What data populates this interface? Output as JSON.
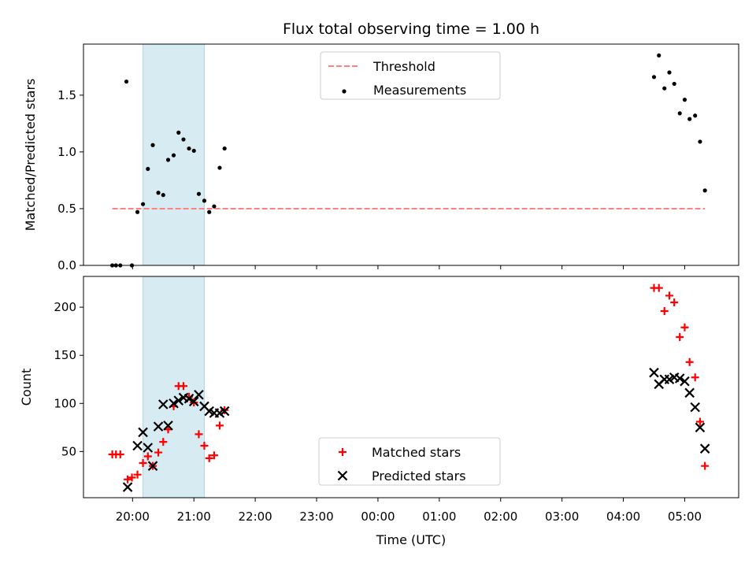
{
  "figure": {
    "title": "Flux total observing time = 1.00 h",
    "xlabel": "Time (UTC)",
    "xtick_labels": [
      "20:00",
      "21:00",
      "22:00",
      "23:00",
      "00:00",
      "01:00",
      "02:00",
      "03:00",
      "04:00",
      "05:00"
    ]
  },
  "chart_data": [
    {
      "type": "scatter",
      "ylabel": "Matched/Predicted stars",
      "x_unit": "hours since 20:00 UTC",
      "ylim": [
        0,
        1.95
      ],
      "yticks": [
        0.0,
        0.5,
        1.0,
        1.5
      ],
      "ytick_labels": [
        "0.0",
        "0.5",
        "1.0",
        "1.5"
      ],
      "shaded_interval": {
        "x": [
          0.17,
          1.17
        ],
        "color": "#add8e6"
      },
      "legend": {
        "position": "top-center",
        "entries": [
          "Threshold",
          "Measurements"
        ]
      },
      "threshold": {
        "name": "Threshold",
        "y": 0.5,
        "x": [
          -0.33,
          9.33
        ],
        "color": "#ff8080"
      },
      "series": [
        {
          "name": "Measurements",
          "color": "#000000",
          "x": [
            -0.33,
            -0.27,
            -0.2,
            -0.1,
            -0.01,
            0.08,
            0.17,
            0.25,
            0.33,
            0.42,
            0.5,
            0.58,
            0.67,
            0.75,
            0.83,
            0.92,
            1.0,
            1.08,
            1.17,
            1.25,
            1.33,
            1.42,
            1.5,
            8.5,
            8.58,
            8.67,
            8.75,
            8.83,
            8.92,
            9.0,
            9.08,
            9.17,
            9.25,
            9.33
          ],
          "y": [
            0,
            0,
            0,
            1.62,
            0,
            0.47,
            0.54,
            0.85,
            1.06,
            0.64,
            0.62,
            0.93,
            0.97,
            1.17,
            1.11,
            1.03,
            1.01,
            0.63,
            0.57,
            0.47,
            0.52,
            0.86,
            1.03,
            1.66,
            1.85,
            1.56,
            1.7,
            1.6,
            1.34,
            1.46,
            1.29,
            1.32,
            1.09,
            0.66
          ]
        }
      ]
    },
    {
      "type": "scatter",
      "ylabel": "Count",
      "x_unit": "hours since 20:00 UTC",
      "ylim": [
        2,
        232
      ],
      "yticks": [
        50,
        100,
        150,
        200
      ],
      "ytick_labels": [
        "50",
        "100",
        "150",
        "200"
      ],
      "shaded_interval": {
        "x": [
          0.17,
          1.17
        ],
        "color": "#add8e6"
      },
      "legend": {
        "position": "bottom-center",
        "entries": [
          "Matched stars",
          "Predicted stars"
        ]
      },
      "series": [
        {
          "name": "Matched stars",
          "marker": "plus",
          "color": "#ff0000",
          "x": [
            -0.33,
            -0.27,
            -0.2,
            -0.08,
            -0.01,
            0.08,
            0.17,
            0.25,
            0.33,
            0.42,
            0.5,
            0.58,
            0.67,
            0.75,
            0.83,
            0.92,
            1.0,
            1.08,
            1.17,
            1.25,
            1.33,
            1.42,
            1.5,
            8.5,
            8.58,
            8.67,
            8.75,
            8.83,
            8.92,
            9.0,
            9.08,
            9.17,
            9.25,
            9.33
          ],
          "y": [
            47,
            47,
            47,
            21,
            23,
            26,
            38,
            45,
            35,
            49,
            60,
            73,
            97,
            118,
            118,
            107,
            101,
            68,
            56,
            43,
            46,
            77,
            93,
            220,
            220,
            196,
            212,
            205,
            169,
            179,
            143,
            127,
            81,
            35
          ]
        },
        {
          "name": "Predicted stars",
          "marker": "x",
          "color": "#000000",
          "x": [
            -0.08,
            0.08,
            0.17,
            0.25,
            0.33,
            0.42,
            0.5,
            0.58,
            0.67,
            0.75,
            0.83,
            0.92,
            1.0,
            1.08,
            1.17,
            1.25,
            1.33,
            1.42,
            1.5,
            8.5,
            8.58,
            8.67,
            8.75,
            8.83,
            8.92,
            9.0,
            9.08,
            9.17,
            9.25,
            9.33
          ],
          "y": [
            13,
            56,
            70,
            54,
            35,
            76,
            99,
            77,
            100,
            103,
            106,
            105,
            102,
            109,
            97,
            92,
            90,
            90,
            92,
            132,
            120,
            125,
            125,
            127,
            126,
            123,
            111,
            96,
            75,
            53
          ]
        }
      ]
    }
  ]
}
